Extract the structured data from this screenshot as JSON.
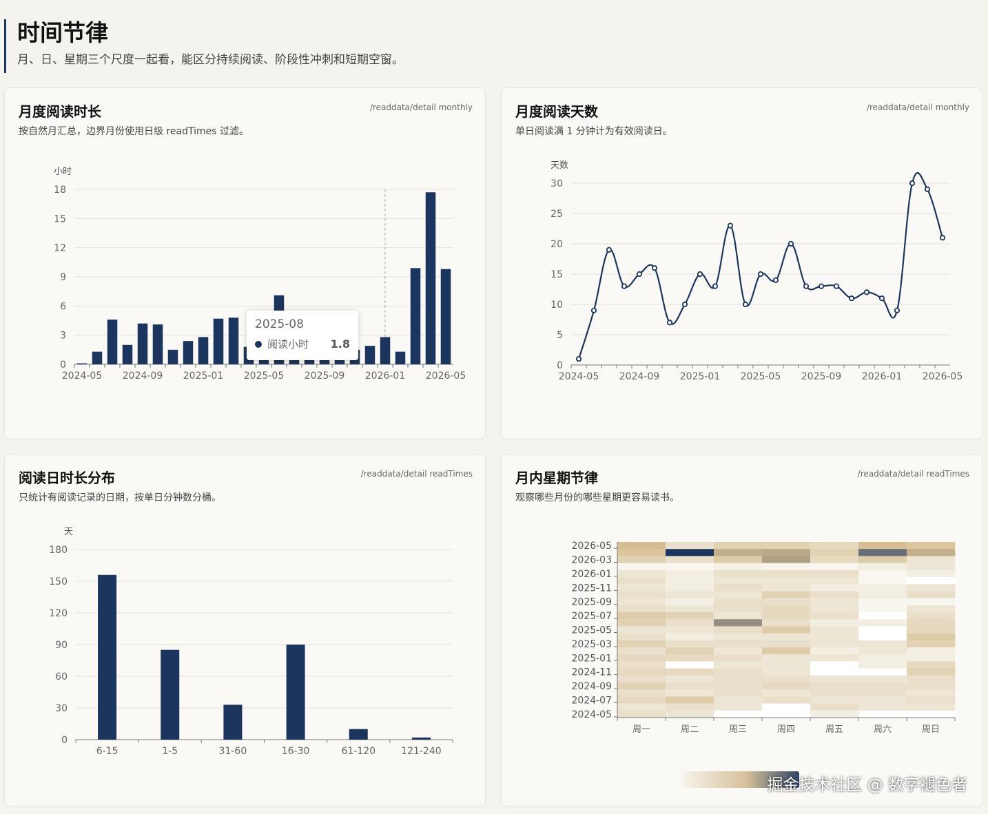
{
  "section": {
    "title": "时间节律",
    "subtitle": "月、日、星期三个尺度一起看，能区分持续阅读、阶段性冲刺和短期空窗。"
  },
  "cards": {
    "monthly_hours": {
      "title": "月度阅读时长",
      "desc": "按自然月汇总，边界月份使用日级 readTimes 过滤。",
      "source": "/readdata/detail monthly"
    },
    "monthly_days": {
      "title": "月度阅读天数",
      "desc": "单日阅读满 1 分钟计为有效阅读日。",
      "source": "/readdata/detail monthly"
    },
    "duration_dist": {
      "title": "阅读日时长分布",
      "desc": "只统计有阅读记录的日期，按单日分钟数分桶。",
      "source": "/readdata/detail readTimes"
    },
    "weekday_rhythm": {
      "title": "月内星期节律",
      "desc": "观察哪些月份的哪些星期更容易读书。",
      "source": "/readdata/detail readTimes"
    }
  },
  "tooltip": {
    "title": "2025-08",
    "series": "阅读小时",
    "value": "1.8"
  },
  "watermark": "掘金技术社区 @ 数字褪色者",
  "colors": {
    "navy": "#1c355e",
    "grid": "#e4e1d8",
    "axis": "#777777"
  },
  "chart_data": [
    {
      "type": "bar",
      "ylabel": "小时",
      "ylim": [
        0,
        18
      ],
      "yticks": [
        0,
        3,
        6,
        9,
        12,
        15,
        18
      ],
      "categories": [
        "2024-05",
        "2024-06",
        "2024-07",
        "2024-08",
        "2024-09",
        "2024-10",
        "2024-11",
        "2024-12",
        "2025-01",
        "2025-02",
        "2025-03",
        "2025-04",
        "2025-05",
        "2025-06",
        "2025-07",
        "2025-08",
        "2025-09",
        "2025-10",
        "2025-11",
        "2025-12",
        "2026-01",
        "2026-02",
        "2026-03",
        "2026-04",
        "2026-05"
      ],
      "xtick_labels": [
        "2024-05",
        "2024-09",
        "2025-01",
        "2025-05",
        "2025-09",
        "2026-01",
        "2026-05"
      ],
      "values": [
        0.1,
        1.3,
        4.6,
        2.0,
        4.2,
        4.1,
        1.5,
        2.4,
        2.8,
        4.7,
        4.8,
        1.8,
        2.1,
        7.1,
        1.8,
        1.8,
        1.6,
        1.4,
        1.5,
        1.9,
        2.8,
        1.3,
        9.9,
        17.7,
        9.8
      ],
      "highlight": "2026-01"
    },
    {
      "type": "line",
      "ylabel": "天数",
      "ylim": [
        0,
        30
      ],
      "yticks": [
        0,
        5,
        10,
        15,
        20,
        25,
        30
      ],
      "categories": [
        "2024-05",
        "2024-06",
        "2024-07",
        "2024-08",
        "2024-09",
        "2024-10",
        "2024-11",
        "2024-12",
        "2025-01",
        "2025-02",
        "2025-03",
        "2025-04",
        "2025-05",
        "2025-06",
        "2025-07",
        "2025-08",
        "2025-09",
        "2025-10",
        "2025-11",
        "2025-12",
        "2026-01",
        "2026-02",
        "2026-03",
        "2026-04",
        "2026-05"
      ],
      "xtick_labels": [
        "2024-05",
        "2024-09",
        "2025-01",
        "2025-05",
        "2025-09",
        "2026-01",
        "2026-05"
      ],
      "values": [
        1,
        9,
        19,
        13,
        15,
        16,
        7,
        10,
        15,
        13,
        23,
        10,
        15,
        14,
        20,
        13,
        13,
        13,
        11,
        12,
        11,
        9,
        30,
        29,
        21
      ]
    },
    {
      "type": "bar",
      "ylabel": "天",
      "ylim": [
        0,
        180
      ],
      "yticks": [
        0,
        30,
        60,
        90,
        120,
        150,
        180
      ],
      "categories": [
        "6-15",
        "1-5",
        "31-60",
        "16-30",
        "61-120",
        "121-240"
      ],
      "values": [
        156,
        85,
        33,
        90,
        10,
        2
      ]
    },
    {
      "type": "heatmap",
      "x_categories": [
        "周一",
        "周二",
        "周三",
        "周四",
        "周五",
        "周六",
        "周日"
      ],
      "y_categories": [
        "2026-05",
        "2026-04",
        "2026-03",
        "2026-02",
        "2026-01",
        "2025-12",
        "2025-11",
        "2025-10",
        "2025-09",
        "2025-08",
        "2025-07",
        "2025-06",
        "2025-05",
        "2025-04",
        "2025-03",
        "2025-02",
        "2025-01",
        "2024-12",
        "2024-11",
        "2024-10",
        "2024-09",
        "2024-08",
        "2024-07",
        "2024-06",
        "2024-05"
      ],
      "ytick_labels": [
        "2026-05",
        "2026-03",
        "2026-01",
        "2025-11",
        "2025-09",
        "2025-07",
        "2025-05",
        "2025-03",
        "2025-01",
        "2024-11",
        "2024-09",
        "2024-07",
        "2024-05"
      ],
      "values": [
        [
          0.45,
          0.2,
          0.3,
          0.3,
          0.25,
          0.45,
          0.4
        ],
        [
          0.4,
          1.0,
          0.55,
          0.6,
          0.3,
          0.8,
          0.55
        ],
        [
          0.3,
          0.2,
          0.35,
          0.65,
          0.25,
          0.35,
          0.15
        ],
        [
          0.05,
          0.05,
          0.08,
          0.05,
          0.05,
          0.1,
          0.15
        ],
        [
          0.15,
          0.1,
          0.2,
          0.2,
          0.2,
          0.05,
          0.1
        ],
        [
          0.2,
          0.1,
          0.15,
          0.15,
          0.15,
          0.05,
          0.0
        ],
        [
          0.15,
          0.1,
          0.2,
          0.15,
          0.1,
          0.1,
          0.15
        ],
        [
          0.2,
          0.15,
          0.15,
          0.3,
          0.2,
          0.1,
          0.2
        ],
        [
          0.15,
          0.1,
          0.2,
          0.2,
          0.15,
          0.05,
          0.05
        ],
        [
          0.2,
          0.15,
          0.2,
          0.25,
          0.15,
          0.05,
          0.15
        ],
        [
          0.35,
          0.3,
          0.15,
          0.25,
          0.2,
          0.0,
          0.2
        ],
        [
          0.3,
          0.2,
          0.7,
          0.2,
          0.1,
          0.1,
          0.25
        ],
        [
          0.15,
          0.15,
          0.2,
          0.35,
          0.15,
          0.0,
          0.25
        ],
        [
          0.2,
          0.1,
          0.15,
          0.15,
          0.15,
          0.0,
          0.35
        ],
        [
          0.3,
          0.2,
          0.2,
          0.2,
          0.15,
          0.15,
          0.3
        ],
        [
          0.2,
          0.3,
          0.15,
          0.35,
          0.1,
          0.15,
          0.1
        ],
        [
          0.25,
          0.25,
          0.2,
          0.15,
          0.15,
          0.1,
          0.1
        ],
        [
          0.2,
          0.0,
          0.15,
          0.15,
          0.0,
          0.1,
          0.25
        ],
        [
          0.25,
          0.25,
          0.2,
          0.15,
          0.0,
          0.0,
          0.3
        ],
        [
          0.2,
          0.15,
          0.2,
          0.2,
          0.15,
          0.15,
          0.2
        ],
        [
          0.3,
          0.2,
          0.2,
          0.25,
          0.2,
          0.2,
          0.2
        ],
        [
          0.2,
          0.15,
          0.2,
          0.15,
          0.2,
          0.2,
          0.15
        ],
        [
          0.25,
          0.35,
          0.15,
          0.2,
          0.15,
          0.15,
          0.2
        ],
        [
          0.15,
          0.2,
          0.15,
          0.0,
          0.2,
          0.15,
          0.15
        ],
        [
          0.2,
          0.15,
          0.0,
          0.0,
          0.1,
          0.0,
          0.0
        ]
      ]
    }
  ]
}
